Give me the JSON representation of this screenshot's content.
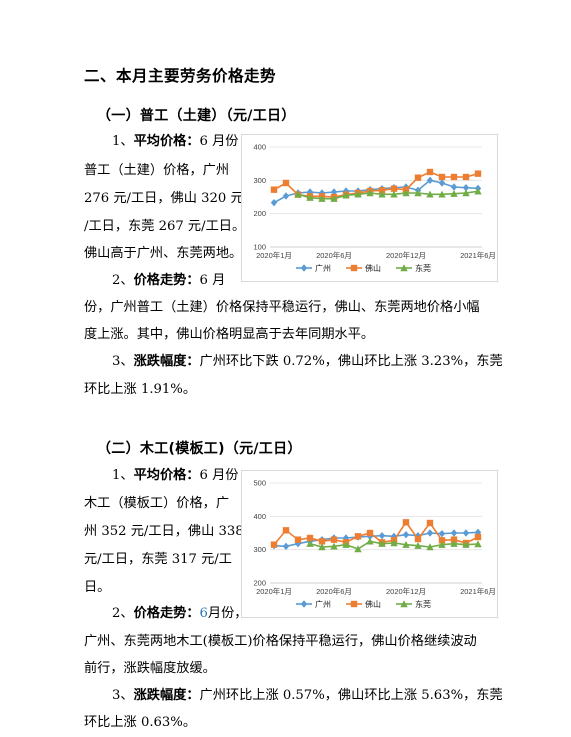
{
  "heading": "二、本月主要劳务价格走势",
  "sections": [
    {
      "title": "（一）普工（土建）（元/工日）",
      "avg_label": "平均价格：",
      "avg_lines": [
        "1、",
        "6 月份",
        "普工（土建）价格，广州",
        "276 元/工日，佛山 320 元",
        "/工日，东莞 267 元/工日。",
        "佛山高于广州、东莞两地。"
      ],
      "trend_label": "价格走势：",
      "trend_lines": [
        "2、",
        "6 月",
        "份，广州普工（土建）价格保持平稳运行，佛山、东莞两地价格小幅",
        "度上涨。其中，佛山价格明显高于去年同期水平。"
      ],
      "change_label": "涨跌幅度：",
      "change_lines": [
        "3、",
        "广州环比下跌 0.72%，佛山环比上涨 3.23%，东莞",
        "环比上涨 1.91%。"
      ]
    },
    {
      "title": "（二）木工(模板工)（元/工日）",
      "avg_label": "平均价格：",
      "avg_lines": [
        "1、",
        "6 月份",
        "木工（模板工）价格，广",
        "州 352 元/工日，佛山 338",
        "元/工日，东莞 317 元/工",
        "日。"
      ],
      "trend_label": "价格走势：",
      "trend_lines": [
        "2、",
        "6",
        "月份，",
        "广州、东莞两地木工(模板工)价格保持平稳运行，佛山价格继续波动",
        "前行，涨跌幅度放缓。"
      ],
      "change_label": "涨跌幅度：",
      "change_lines": [
        "3、",
        "广州环比上涨 0.57%，佛山环比上涨 5.63%，东莞",
        "环比上涨 0.63%。"
      ]
    }
  ],
  "chart_data": [
    {
      "type": "line",
      "x": [
        "2020年1月",
        "2020年2月",
        "2020年3月",
        "2020年4月",
        "2020年5月",
        "2020年6月",
        "2020年7月",
        "2020年8月",
        "2020年9月",
        "2020年10月",
        "2020年11月",
        "2020年12月",
        "2021年1月",
        "2021年2月",
        "2021年3月",
        "2021年4月",
        "2021年5月",
        "2021年6月"
      ],
      "xticks": [
        "2020年1月",
        "2020年6月",
        "2020年12月",
        "2021年6月"
      ],
      "ylim": [
        100,
        400
      ],
      "yticks": [
        100,
        200,
        300,
        400
      ],
      "grid": true,
      "legend": "bottom",
      "series": [
        {
          "name": "广州",
          "color": "#5b9bd5",
          "marker": "diamond",
          "values": [
            233,
            253,
            262,
            265,
            262,
            265,
            268,
            268,
            272,
            275,
            278,
            280,
            270,
            300,
            292,
            280,
            278,
            276
          ]
        },
        {
          "name": "佛山",
          "color": "#ed7d31",
          "marker": "square",
          "values": [
            272,
            292,
            257,
            252,
            252,
            250,
            257,
            262,
            268,
            270,
            275,
            272,
            308,
            325,
            310,
            310,
            310,
            320
          ]
        },
        {
          "name": "东莞",
          "color": "#70ad47",
          "marker": "triangle",
          "values": [
            null,
            null,
            258,
            248,
            245,
            245,
            255,
            258,
            262,
            258,
            258,
            262,
            262,
            258,
            258,
            260,
            262,
            267
          ]
        }
      ]
    },
    {
      "type": "line",
      "x": [
        "2020年1月",
        "2020年2月",
        "2020年3月",
        "2020年4月",
        "2020年5月",
        "2020年6月",
        "2020年7月",
        "2020年8月",
        "2020年9月",
        "2020年10月",
        "2020年11月",
        "2020年12月",
        "2021年1月",
        "2021年2月",
        "2021年3月",
        "2021年4月",
        "2021年5月",
        "2021年6月"
      ],
      "xticks": [
        "2020年1月",
        "2020年6月",
        "2020年12月",
        "2021年6月"
      ],
      "ylim": [
        200,
        500
      ],
      "yticks": [
        200,
        300,
        400,
        500
      ],
      "grid": true,
      "legend": "bottom",
      "series": [
        {
          "name": "广州",
          "color": "#5b9bd5",
          "marker": "diamond",
          "values": [
            312,
            310,
            318,
            325,
            330,
            335,
            335,
            338,
            340,
            342,
            340,
            345,
            342,
            350,
            348,
            350,
            350,
            352
          ]
        },
        {
          "name": "佛山",
          "color": "#ed7d31",
          "marker": "square",
          "values": [
            315,
            358,
            330,
            335,
            325,
            330,
            322,
            340,
            350,
            322,
            328,
            382,
            332,
            380,
            328,
            330,
            320,
            338
          ]
        },
        {
          "name": "东莞",
          "color": "#70ad47",
          "marker": "triangle",
          "values": [
            null,
            null,
            null,
            318,
            308,
            310,
            315,
            302,
            325,
            318,
            320,
            315,
            312,
            308,
            315,
            318,
            315,
            317
          ]
        }
      ]
    }
  ]
}
